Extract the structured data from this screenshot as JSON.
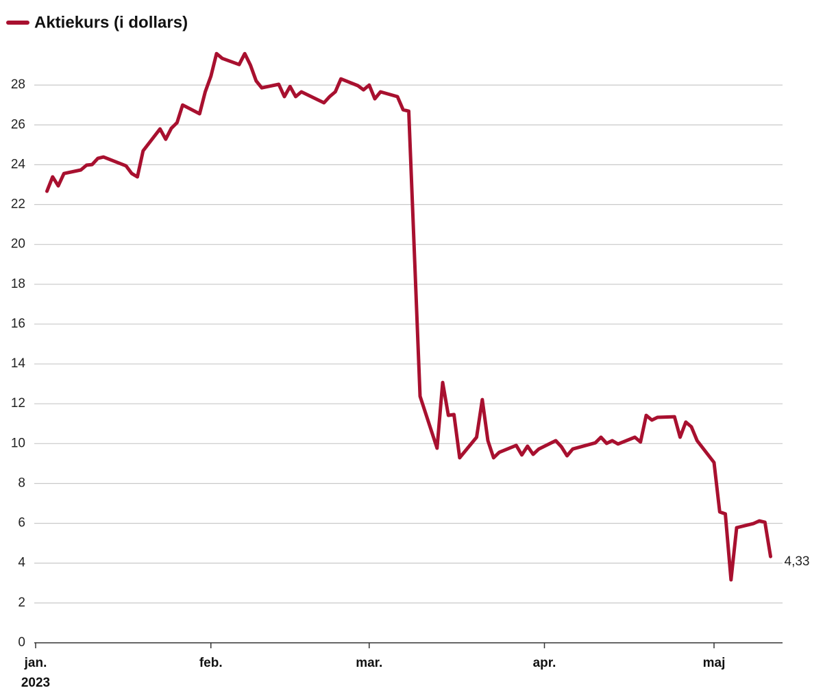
{
  "chart_data": {
    "type": "line",
    "series": [
      {
        "name": "Aktiekurs (i dollars)",
        "color": "#a8102f",
        "last_value_label": "4,33",
        "values": [
          22.67,
          23.39,
          22.94,
          23.56,
          23.74,
          23.98,
          24.01,
          24.32,
          24.39,
          23.94,
          23.56,
          23.39,
          24.7,
          25.8,
          25.28,
          25.83,
          26.11,
          27.0,
          26.56,
          27.66,
          28.45,
          29.58,
          29.34,
          29.03,
          29.58,
          29.0,
          28.21,
          27.86,
          28.04,
          27.42,
          27.93,
          27.42,
          27.66,
          27.11,
          27.42,
          27.66,
          28.31,
          27.97,
          27.76,
          28.0,
          27.31,
          27.66,
          27.42,
          26.76,
          26.69,
          12.38,
          9.77,
          13.07,
          11.42,
          11.46,
          9.29,
          10.32,
          12.21,
          10.15,
          9.29,
          9.56,
          9.91,
          9.43,
          9.87,
          9.46,
          9.73,
          10.15,
          9.84,
          9.39,
          9.73,
          10.04,
          10.32,
          10.01,
          10.15,
          9.98,
          10.32,
          10.08,
          11.42,
          11.18,
          11.32,
          11.35,
          10.32,
          11.08,
          10.84,
          10.15,
          9.05,
          6.57,
          6.47,
          3.16,
          5.78,
          5.99,
          6.12,
          6.05,
          4.33
        ]
      }
    ],
    "x": [
      2,
      3,
      4,
      5,
      8,
      9,
      10,
      11,
      12,
      16,
      17,
      18,
      19,
      22,
      23,
      24,
      25,
      26,
      29,
      30,
      31,
      32,
      33,
      36,
      37,
      38,
      39,
      40,
      43,
      44,
      45,
      46,
      47,
      51,
      52,
      53,
      54,
      57,
      58,
      59,
      60,
      61,
      64,
      65,
      66,
      68,
      71,
      72,
      73,
      74,
      75,
      78,
      79,
      80,
      81,
      82,
      85,
      86,
      87,
      88,
      89,
      92,
      93,
      94,
      95,
      99,
      100,
      101,
      102,
      103,
      106,
      107,
      108,
      109,
      110,
      113,
      114,
      115,
      116,
      117,
      120,
      121,
      122,
      123,
      124,
      127,
      128,
      129,
      130
    ],
    "xlim": [
      0,
      132
    ],
    "xticks": [
      {
        "value": 0,
        "label": "jan."
      },
      {
        "value": 31,
        "label": "feb."
      },
      {
        "value": 59,
        "label": "mar."
      },
      {
        "value": 90,
        "label": "apr."
      },
      {
        "value": 120,
        "label": "maj"
      }
    ],
    "x_year_label": "2023",
    "ylim": [
      0,
      30
    ],
    "yticks": [
      0,
      2,
      4,
      6,
      8,
      10,
      12,
      14,
      16,
      18,
      20,
      22,
      24,
      26,
      28
    ],
    "grid": true,
    "legend": "top-left"
  }
}
